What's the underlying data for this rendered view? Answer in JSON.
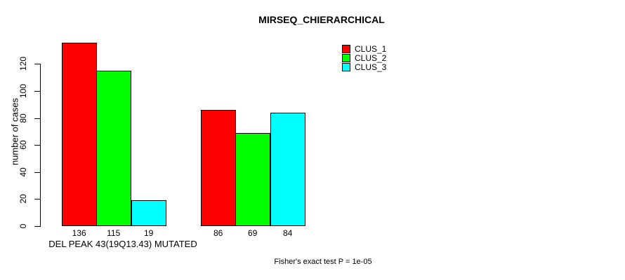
{
  "chart_data": {
    "type": "bar",
    "title": "MIRSEQ_CHIERARCHICAL",
    "ylabel": "number of cases",
    "xlabel": "",
    "categories": [
      "DEL PEAK 43(19Q13.43) MUTATED",
      ""
    ],
    "series": [
      {
        "name": "CLUS_1",
        "color": "#ff0000",
        "values": [
          136,
          86
        ]
      },
      {
        "name": "CLUS_2",
        "color": "#00ff00",
        "values": [
          115,
          69
        ]
      },
      {
        "name": "CLUS_3",
        "color": "#00ffff",
        "values": [
          19,
          84
        ]
      }
    ],
    "yticks": [
      0,
      20,
      40,
      60,
      80,
      100,
      120
    ],
    "ylim": [
      0,
      136
    ],
    "grid": false,
    "legend_position": "top-right",
    "bar_value_labels": true,
    "annotation": "Fisher's exact test P = 1e-05",
    "colors": {
      "background": "#ffffff",
      "axis": "#000000",
      "text": "#000000"
    }
  }
}
